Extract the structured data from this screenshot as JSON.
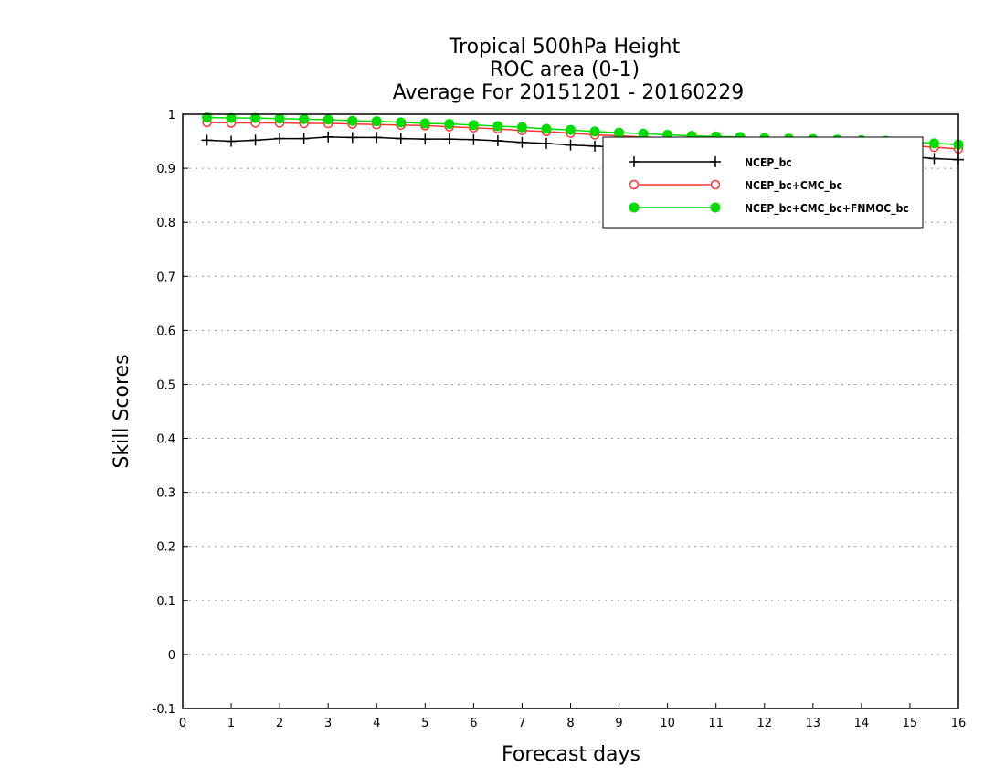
{
  "chart_data": {
    "type": "line",
    "title": [
      "Tropical 500hPa Height",
      "ROC area (0-1)",
      "Average For 20151201 - 20160229"
    ],
    "xlabel": "Forecast days",
    "ylabel": "Skill Scores",
    "xlim": [
      0,
      16
    ],
    "ylim": [
      -0.1,
      1
    ],
    "xticks": [
      0,
      1,
      2,
      3,
      4,
      5,
      6,
      7,
      8,
      9,
      10,
      11,
      12,
      13,
      14,
      15,
      16
    ],
    "yticks": [
      -0.1,
      0,
      0.1,
      0.2,
      0.3,
      0.4,
      0.5,
      0.6,
      0.7,
      0.8,
      0.9,
      1
    ],
    "ytick_labels": [
      "-0.1",
      "0",
      "0.1",
      "0.2",
      "0.3",
      "0.4",
      "0.5",
      "0.6",
      "0.7",
      "0.8",
      "0.9",
      "1"
    ],
    "grid": "horizontal dotted",
    "legend_position": "top-right",
    "x": [
      0.5,
      1,
      1.5,
      2,
      2.5,
      3,
      3.5,
      4,
      4.5,
      5,
      5.5,
      6,
      6.5,
      7,
      7.5,
      8,
      8.5,
      9,
      9.5,
      10,
      10.5,
      11,
      11.5,
      12,
      12.5,
      13,
      13.5,
      14,
      14.5,
      15,
      15.5,
      16
    ],
    "series": [
      {
        "name": "NCEP_bc",
        "color": "#000000",
        "marker": "plus",
        "values": [
          0.952,
          0.95,
          0.952,
          0.955,
          0.955,
          0.958,
          0.957,
          0.957,
          0.955,
          0.954,
          0.954,
          0.953,
          0.951,
          0.948,
          0.946,
          0.943,
          0.941,
          0.939,
          0.937,
          0.935,
          0.934,
          0.932,
          0.931,
          0.93,
          0.929,
          0.928,
          0.927,
          0.926,
          0.925,
          0.922,
          0.918,
          0.916
        ]
      },
      {
        "name": "NCEP_bc+CMC_bc",
        "color": "#ff3333",
        "marker": "open-circle",
        "values": [
          0.985,
          0.984,
          0.984,
          0.984,
          0.983,
          0.983,
          0.982,
          0.981,
          0.98,
          0.979,
          0.977,
          0.975,
          0.973,
          0.97,
          0.968,
          0.965,
          0.962,
          0.96,
          0.958,
          0.956,
          0.954,
          0.953,
          0.951,
          0.95,
          0.949,
          0.948,
          0.947,
          0.946,
          0.944,
          0.942,
          0.939,
          0.936
        ]
      },
      {
        "name": "NCEP_bc+CMC_bc+FNMOC_bc",
        "color": "#00dd00",
        "marker": "filled-circle",
        "values": [
          0.994,
          0.993,
          0.993,
          0.992,
          0.991,
          0.99,
          0.988,
          0.987,
          0.985,
          0.983,
          0.982,
          0.98,
          0.978,
          0.976,
          0.973,
          0.971,
          0.968,
          0.966,
          0.964,
          0.962,
          0.96,
          0.959,
          0.958,
          0.956,
          0.955,
          0.954,
          0.953,
          0.952,
          0.951,
          0.949,
          0.946,
          0.944
        ]
      }
    ]
  }
}
